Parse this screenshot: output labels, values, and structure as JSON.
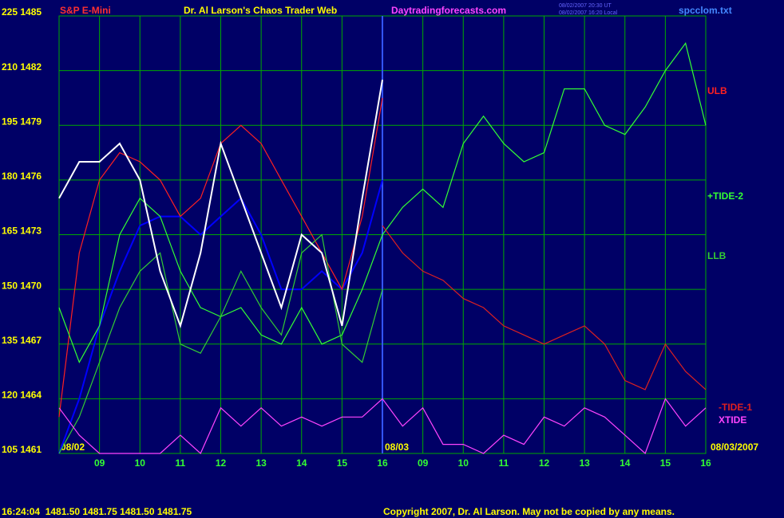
{
  "chart_data": {
    "type": "line",
    "title": "Dr. Al Larson's Chaos Trader Web",
    "instrument": "S&P E-Mini",
    "website": "Daytradingforecasts.com",
    "file": "spcclom.txt",
    "timestamps": [
      "08/02/2007 20:30 UT",
      "08/02/2007 16:20 Local"
    ],
    "quote": "16:24:04  1481.50 1481.75 1481.50 1481.75",
    "copyright": "Copyright 2007, Dr. Al Larson. May not be copied by any means.",
    "dates": [
      "08/02",
      "08/03",
      "08/03/2007"
    ],
    "categories": [
      null,
      null,
      "09",
      null,
      "10",
      null,
      "11",
      null,
      "12",
      null,
      "13",
      null,
      "14",
      null,
      "15",
      null,
      "16",
      null,
      "09",
      null,
      "10",
      null,
      "11",
      null,
      "12",
      null,
      "13",
      null,
      "14",
      null,
      "15",
      null,
      "16"
    ],
    "ylim": [
      1461,
      1485
    ],
    "yticks": [
      {
        "value": 1485,
        "label": "225 1485"
      },
      {
        "value": 1482,
        "label": "210 1482"
      },
      {
        "value": 1479,
        "label": "195 1479"
      },
      {
        "value": 1476,
        "label": "180 1476"
      },
      {
        "value": 1473,
        "label": "165 1473"
      },
      {
        "value": 1470,
        "label": "150 1470"
      },
      {
        "value": 1467,
        "label": "135 1467"
      },
      {
        "value": 1464,
        "label": "120 1464"
      },
      {
        "value": 1461,
        "label": "105 1461"
      }
    ],
    "grid": true,
    "series": [
      {
        "color": "#0000ff",
        "values": [
          1461,
          1464,
          1468,
          1471,
          1473.5,
          1474,
          1474,
          1473,
          1474,
          1475,
          1473,
          1470,
          1470,
          1471,
          1470,
          1472,
          1476,
          null,
          null,
          null,
          null,
          null,
          null,
          null,
          null,
          null,
          null,
          null,
          null,
          null,
          null,
          null,
          null
        ]
      },
      {
        "name": "ULB",
        "color": "#ff2020",
        "values": [
          1463,
          1472,
          1476,
          1477.5,
          1477,
          1476,
          1474,
          1475,
          1478,
          1479,
          1478,
          1476,
          1474,
          1472,
          1470,
          1474,
          1480.5,
          null,
          null,
          null,
          null,
          null,
          null,
          null,
          null,
          null,
          null,
          null,
          null,
          null,
          null,
          null,
          null
        ]
      },
      {
        "name": "+TIDE-2",
        "color": "#33ff33",
        "values": [
          1469,
          1466,
          1468,
          1473,
          1475,
          1474,
          1471,
          1469,
          1468.5,
          1469,
          1467.5,
          1467,
          1469,
          1467,
          1467.5,
          1470,
          1473,
          1474.5,
          1475.5,
          1474.5,
          1478,
          1479.5,
          1478,
          1477,
          1477.5,
          1481,
          1481,
          1479,
          1478.5,
          1480,
          1482,
          1483.5,
          1479
        ]
      },
      {
        "name": "LLB",
        "color": "#33cc33",
        "values": [
          1461,
          1463,
          1466,
          1469,
          1471,
          1472,
          1467,
          1466.5,
          1468.5,
          1471,
          1469,
          1467.5,
          1472,
          1473,
          1467,
          1466,
          1470,
          null,
          null,
          null,
          null,
          null,
          null,
          null,
          null,
          null,
          null,
          null,
          null,
          null,
          null,
          null,
          null
        ]
      },
      {
        "name": "-TIDE-1",
        "color": "#dd2020",
        "values": [
          null,
          null,
          null,
          null,
          null,
          null,
          null,
          null,
          null,
          null,
          null,
          null,
          null,
          null,
          null,
          null,
          1473.5,
          1472,
          1471,
          1470.5,
          1469.5,
          1469,
          1468,
          1467.5,
          1467,
          1467.5,
          1468,
          1467,
          1465,
          1464.5,
          1467,
          1465.5,
          1464.5
        ]
      },
      {
        "name": "XTIDE",
        "color": "#ff44ff",
        "values": [
          1463.5,
          1462,
          1461,
          1461,
          1461,
          1461,
          1462,
          1461,
          1463.5,
          1462.5,
          1463.5,
          1462.5,
          1463,
          1462.5,
          1463,
          1463,
          1464,
          1462.5,
          1463.5,
          1461.5,
          1461.5,
          1461,
          1462,
          1461.5,
          1463,
          1462.5,
          1463.5,
          1463,
          1462,
          1461,
          1464,
          1462.5,
          1463.5
        ]
      },
      {
        "color": "#ffffff",
        "values": [
          1475,
          1477,
          1477,
          1478,
          1476,
          1471,
          1468,
          1472,
          1478,
          1475,
          1472,
          1469,
          1473,
          1472,
          1468,
          1475,
          1481.5,
          null,
          null,
          null,
          null,
          null,
          null,
          null,
          null,
          null,
          null,
          null,
          null,
          null,
          null,
          null,
          null
        ]
      }
    ]
  }
}
